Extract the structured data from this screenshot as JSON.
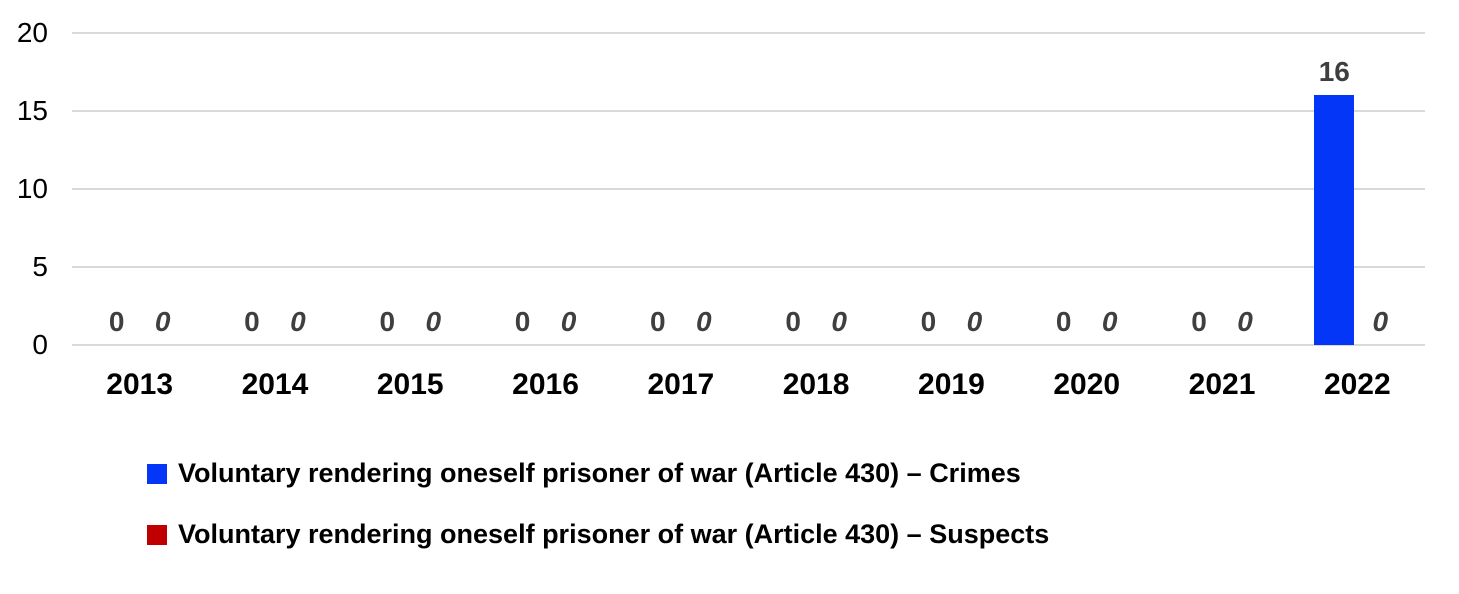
{
  "chart_data": {
    "type": "bar",
    "categories": [
      "2013",
      "2014",
      "2015",
      "2016",
      "2017",
      "2018",
      "2019",
      "2020",
      "2021",
      "2022"
    ],
    "series": [
      {
        "name": "Voluntary rendering oneself prisoner of war (Article 430) – Crimes",
        "color": "#0336f6",
        "values": [
          0,
          0,
          0,
          0,
          0,
          0,
          0,
          0,
          0,
          16
        ],
        "label_style": "bold"
      },
      {
        "name": "Voluntary rendering oneself prisoner of war (Article 430) – Suspects",
        "color": "#c00000",
        "values": [
          0,
          0,
          0,
          0,
          0,
          0,
          0,
          0,
          0,
          0
        ],
        "label_style": "bold-italic"
      }
    ],
    "title": "",
    "xlabel": "",
    "ylabel": "",
    "y_ticks": [
      0,
      5,
      10,
      15,
      20
    ],
    "y_tick_labels": [
      "0",
      "5",
      "10",
      "15",
      "20"
    ],
    "ylim": [
      0,
      20
    ],
    "grid": true,
    "gridline_color": "#d9d9d9",
    "data_label_color": "#3f3f3f",
    "legend_position": "bottom"
  }
}
